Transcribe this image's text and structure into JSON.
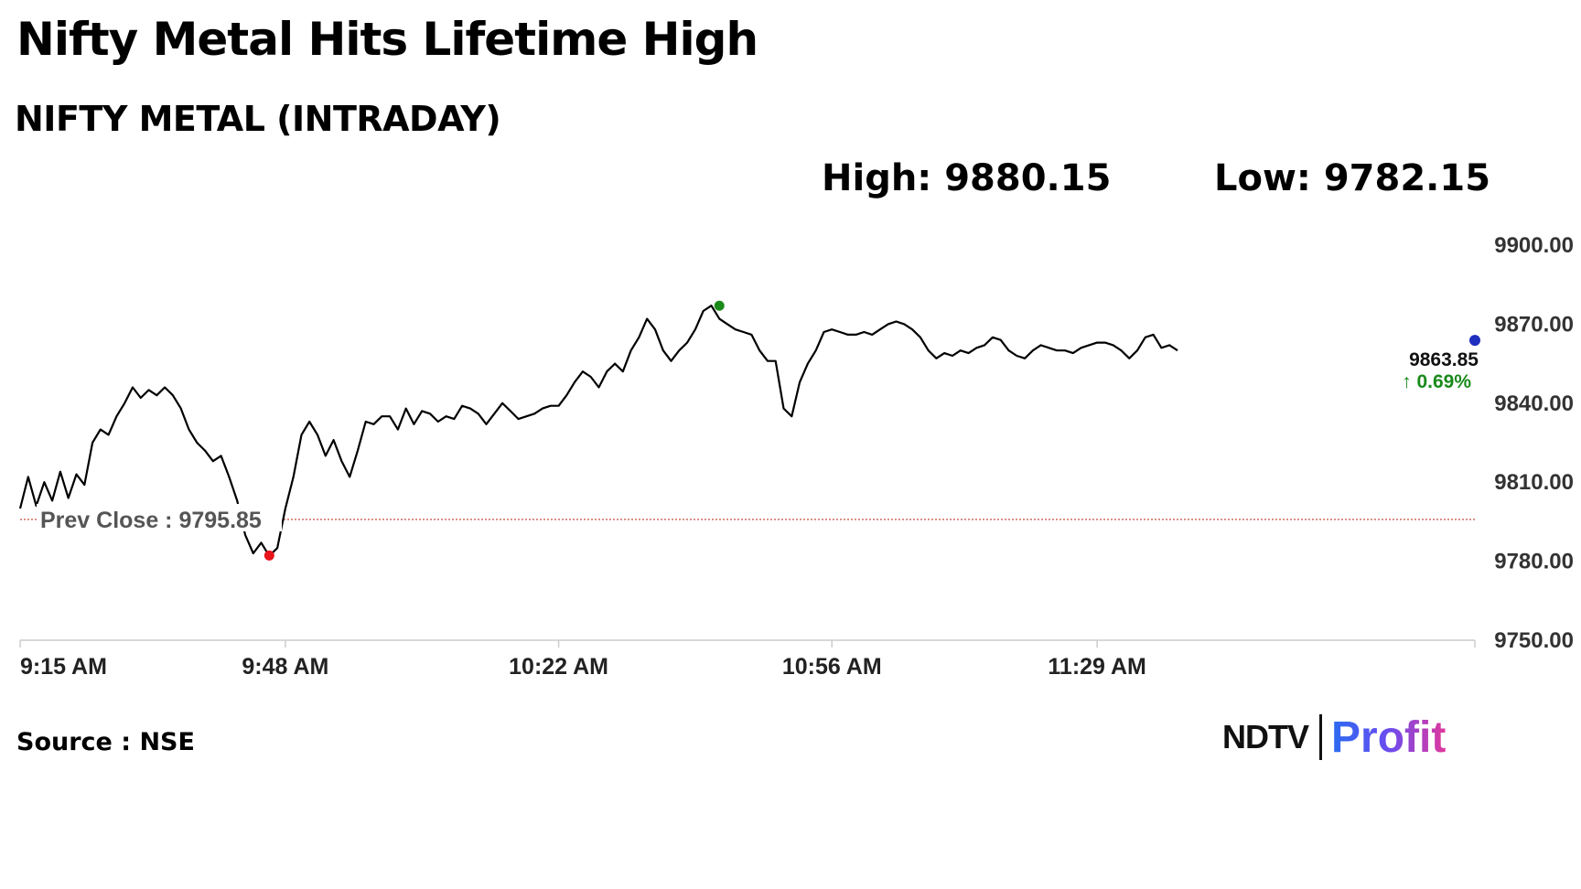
{
  "header": {
    "headline": "Nifty Metal Hits Lifetime High",
    "subtitle": "NIFTY METAL (INTRADAY)",
    "high_label": "High: 9880.15",
    "low_label": "Low: 9782.15"
  },
  "footer": {
    "source": "Source : NSE",
    "logo_ndtv": "NDTV",
    "logo_profit": "Profit"
  },
  "colors": {
    "line": "#000000",
    "prev_close": "#c0392b",
    "high_marker": "#1a8a1a",
    "low_marker": "#e8141b",
    "last_marker": "#1f2fbf",
    "change_up": "#1a8a1a",
    "axis": "#cccccc"
  },
  "chart_data": {
    "type": "line",
    "title": "NIFTY METAL (INTRADAY)",
    "x_unit": "time",
    "xlim": [
      "9:15",
      "12:16"
    ],
    "ylim": [
      9750,
      9900
    ],
    "x_ticks": [
      "9:15 AM",
      "9:48 AM",
      "10:22 AM",
      "10:56 AM",
      "11:29 AM"
    ],
    "y_ticks": [
      "9750.00",
      "9780.00",
      "9810.00",
      "9840.00",
      "9870.00",
      "9900.00"
    ],
    "y_tick_values": [
      9750,
      9780,
      9810,
      9840,
      9870,
      9900
    ],
    "series": [
      {
        "points": [
          [
            "9:15",
            9800
          ],
          [
            "9:16",
            9812
          ],
          [
            "9:17",
            9801
          ],
          [
            "9:18",
            9810
          ],
          [
            "9:19",
            9803
          ],
          [
            "9:20",
            9814
          ],
          [
            "9:21",
            9804
          ],
          [
            "9:22",
            9813
          ],
          [
            "9:23",
            9809
          ],
          [
            "9:24",
            9825
          ],
          [
            "9:25",
            9830
          ],
          [
            "9:26",
            9828
          ],
          [
            "9:27",
            9835
          ],
          [
            "9:28",
            9840
          ],
          [
            "9:29",
            9846
          ],
          [
            "9:30",
            9842
          ],
          [
            "9:31",
            9845
          ],
          [
            "9:32",
            9843
          ],
          [
            "9:33",
            9846
          ],
          [
            "9:34",
            9843
          ],
          [
            "9:35",
            9838
          ],
          [
            "9:36",
            9830
          ],
          [
            "9:37",
            9825
          ],
          [
            "9:38",
            9822
          ],
          [
            "9:39",
            9818
          ],
          [
            "9:40",
            9820
          ],
          [
            "9:41",
            9812
          ],
          [
            "9:42",
            9803
          ],
          [
            "9:43",
            9790
          ],
          [
            "9:44",
            9783
          ],
          [
            "9:45",
            9787
          ],
          [
            "9:46",
            9782
          ],
          [
            "9:47",
            9785
          ],
          [
            "9:48",
            9800
          ],
          [
            "9:49",
            9812
          ],
          [
            "9:50",
            9828
          ],
          [
            "9:51",
            9833
          ],
          [
            "9:52",
            9828
          ],
          [
            "9:53",
            9820
          ],
          [
            "9:54",
            9826
          ],
          [
            "9:55",
            9818
          ],
          [
            "9:56",
            9812
          ],
          [
            "9:57",
            9822
          ],
          [
            "9:58",
            9833
          ],
          [
            "9:59",
            9832
          ],
          [
            "10:00",
            9835
          ],
          [
            "10:01",
            9835
          ],
          [
            "10:02",
            9830
          ],
          [
            "10:03",
            9838
          ],
          [
            "10:04",
            9832
          ],
          [
            "10:05",
            9837
          ],
          [
            "10:06",
            9836
          ],
          [
            "10:07",
            9833
          ],
          [
            "10:08",
            9835
          ],
          [
            "10:09",
            9834
          ],
          [
            "10:10",
            9839
          ],
          [
            "10:11",
            9838
          ],
          [
            "10:12",
            9836
          ],
          [
            "10:13",
            9832
          ],
          [
            "10:14",
            9836
          ],
          [
            "10:15",
            9840
          ],
          [
            "10:16",
            9837
          ],
          [
            "10:17",
            9834
          ],
          [
            "10:18",
            9835
          ],
          [
            "10:19",
            9836
          ],
          [
            "10:20",
            9838
          ],
          [
            "10:21",
            9839
          ],
          [
            "10:22",
            9839
          ],
          [
            "10:23",
            9843
          ],
          [
            "10:24",
            9848
          ],
          [
            "10:25",
            9852
          ],
          [
            "10:26",
            9850
          ],
          [
            "10:27",
            9846
          ],
          [
            "10:28",
            9852
          ],
          [
            "10:29",
            9855
          ],
          [
            "10:30",
            9852
          ],
          [
            "10:31",
            9860
          ],
          [
            "10:32",
            9865
          ],
          [
            "10:33",
            9872
          ],
          [
            "10:34",
            9868
          ],
          [
            "10:35",
            9860
          ],
          [
            "10:36",
            9856
          ],
          [
            "10:37",
            9860
          ],
          [
            "10:38",
            9863
          ],
          [
            "10:39",
            9868
          ],
          [
            "10:40",
            9875
          ],
          [
            "10:41",
            9877
          ],
          [
            "10:42",
            9872
          ],
          [
            "10:43",
            9870
          ],
          [
            "10:44",
            9868
          ],
          [
            "10:45",
            9867
          ],
          [
            "10:46",
            9866
          ],
          [
            "10:47",
            9860
          ],
          [
            "10:48",
            9856
          ],
          [
            "10:49",
            9856
          ],
          [
            "10:50",
            9838
          ],
          [
            "10:51",
            9835
          ],
          [
            "10:52",
            9848
          ],
          [
            "10:53",
            9855
          ],
          [
            "10:54",
            9860
          ],
          [
            "10:55",
            9867
          ],
          [
            "10:56",
            9868
          ],
          [
            "10:57",
            9867
          ],
          [
            "10:58",
            9866
          ],
          [
            "10:59",
            9866
          ],
          [
            "11:00",
            9867
          ],
          [
            "11:01",
            9866
          ],
          [
            "11:02",
            9868
          ],
          [
            "11:03",
            9870
          ],
          [
            "11:04",
            9871
          ],
          [
            "11:05",
            9870
          ],
          [
            "11:06",
            9868
          ],
          [
            "11:07",
            9865
          ],
          [
            "11:08",
            9860
          ],
          [
            "11:09",
            9857
          ],
          [
            "11:10",
            9859
          ],
          [
            "11:11",
            9858
          ],
          [
            "11:12",
            9860
          ],
          [
            "11:13",
            9859
          ],
          [
            "11:14",
            9861
          ],
          [
            "11:15",
            9862
          ],
          [
            "11:16",
            9865
          ],
          [
            "11:17",
            9864
          ],
          [
            "11:18",
            9860
          ],
          [
            "11:19",
            9858
          ],
          [
            "11:20",
            9857
          ],
          [
            "11:21",
            9860
          ],
          [
            "11:22",
            9862
          ],
          [
            "11:23",
            9861
          ],
          [
            "11:24",
            9860
          ],
          [
            "11:25",
            9860
          ],
          [
            "11:26",
            9859
          ],
          [
            "11:27",
            9861
          ],
          [
            "11:28",
            9862
          ],
          [
            "11:29",
            9863
          ],
          [
            "11:30",
            9863
          ],
          [
            "11:31",
            9862
          ],
          [
            "11:32",
            9860
          ],
          [
            "11:33",
            9857
          ],
          [
            "11:34",
            9860
          ],
          [
            "11:35",
            9865
          ],
          [
            "11:36",
            9866
          ],
          [
            "11:37",
            9861
          ],
          [
            "11:38",
            9862
          ],
          [
            "11:39",
            9860
          ]
        ]
      }
    ],
    "prev_close": {
      "label": "Prev Close : 9795.85",
      "value": 9795.85
    },
    "high_marker": {
      "x": "10:42",
      "value": 9877
    },
    "low_marker": {
      "x": "9:46",
      "value": 9782.15
    },
    "last_marker": {
      "x": "12:16",
      "value": 9863.85,
      "price_label": "9863.85",
      "change_label": "↑ 0.69%"
    },
    "grid": false,
    "legend": "none"
  }
}
